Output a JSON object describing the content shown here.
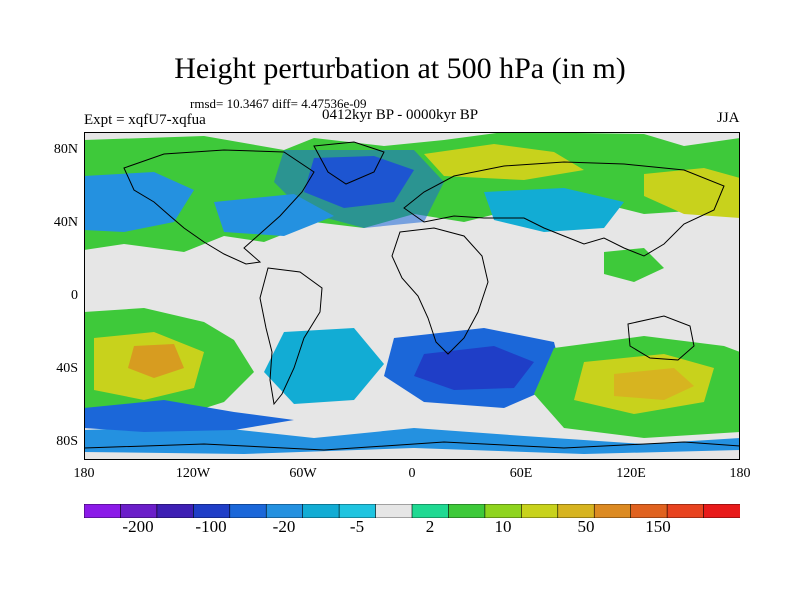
{
  "title": "Height perturbation at 500 hPa (in m)",
  "stats": "rmsd= 10.3467 diff= 4.47536e-09",
  "experiment": "Expt = xqfU7-xqfua",
  "period": "0412kyr BP - 0000kyr BP",
  "season": "JJA",
  "x_ticks": [
    "180",
    "120W",
    "60W",
    "0",
    "60E",
    "120E",
    "180"
  ],
  "y_ticks": [
    "80N",
    "40N",
    "0",
    "40S",
    "80S"
  ],
  "colorbar": {
    "colors": [
      "#8b1ae8",
      "#6b1ec9",
      "#3e1fb4",
      "#1f3ec7",
      "#1b67d9",
      "#2491e0",
      "#12acd4",
      "#1fc4e0",
      "#e6e6e6",
      "#1fd992",
      "#3ec93a",
      "#8fd41e",
      "#c8d21c",
      "#d7b420",
      "#dc8a22",
      "#e0621f",
      "#e8431f",
      "#e81a1a"
    ],
    "labels": [
      "-200",
      "-100",
      "-20",
      "-5",
      "2",
      "10",
      "50",
      "150"
    ]
  },
  "map": {
    "ocean_color": "#e6e6e6",
    "land_outline": "#000000",
    "fields": [
      {
        "color": "#3ec93a",
        "level": 10
      },
      {
        "color": "#1b67d9",
        "level": -20
      },
      {
        "color": "#c8d21c",
        "level": 50
      }
    ]
  }
}
